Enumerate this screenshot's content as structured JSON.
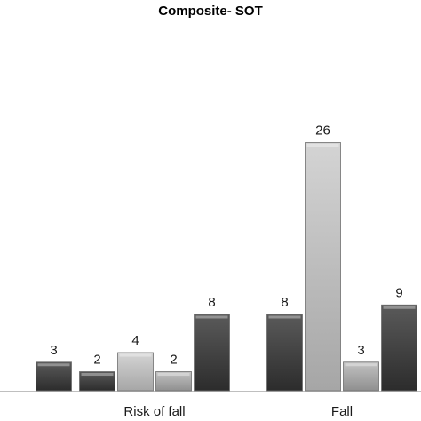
{
  "chart_data": {
    "type": "bar",
    "title": "Composite- SOT",
    "categories": [
      "",
      "Risk of fall",
      "Fall"
    ],
    "series": [
      {
        "color": "#3d3d3d",
        "values": [
          null,
          2,
          8
        ]
      },
      {
        "color": "#b9b9b9",
        "values": [
          null,
          4,
          26
        ]
      },
      {
        "color": "#a8a8a8",
        "values": [
          null,
          2,
          3
        ]
      },
      {
        "color": "#3d3d3d",
        "values": [
          3,
          8,
          9
        ]
      }
    ],
    "ylim": [
      0,
      32
    ],
    "grid": false,
    "legend": "none",
    "xlabel": "",
    "ylabel": ""
  }
}
